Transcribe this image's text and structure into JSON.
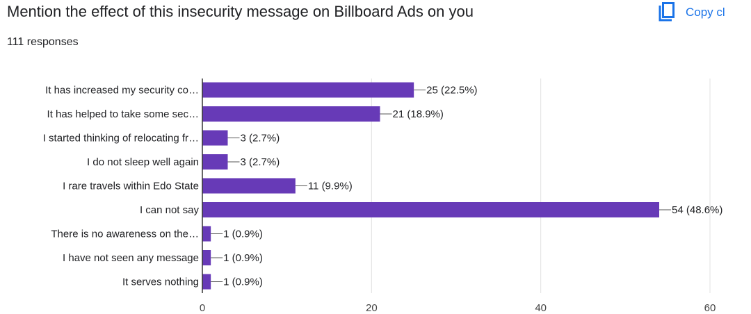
{
  "header": {
    "title": "Mention the effect of this insecurity message on Billboard Ads on you",
    "responses": "111 responses",
    "copy_label": "Copy cl"
  },
  "colors": {
    "bar": "#673ab7",
    "link": "#1a73e8",
    "grid": "#e0e0e0",
    "axis": "#333333"
  },
  "chart_data": {
    "type": "bar",
    "orientation": "horizontal",
    "title": "",
    "xlabel": "",
    "ylabel": "",
    "categories": [
      "It has increased my security co…",
      "It has helped to take some sec…",
      "I started thinking of relocating fr…",
      "I do not sleep well again",
      "I rare travels within Edo State",
      "I can not say",
      "There is no awareness on the…",
      "I have not seen any message",
      "It serves nothing"
    ],
    "values": [
      25,
      21,
      3,
      3,
      11,
      54,
      1,
      1,
      1
    ],
    "value_labels": [
      "25 (22.5%)",
      "21 (18.9%)",
      "3 (2.7%)",
      "3 (2.7%)",
      "11 (9.9%)",
      "54 (48.6%)",
      "1 (0.9%)",
      "1 (0.9%)",
      "1 (0.9%)"
    ],
    "xlim": [
      0,
      60
    ],
    "xticks": [
      0,
      20,
      40,
      60
    ],
    "grid": true
  }
}
